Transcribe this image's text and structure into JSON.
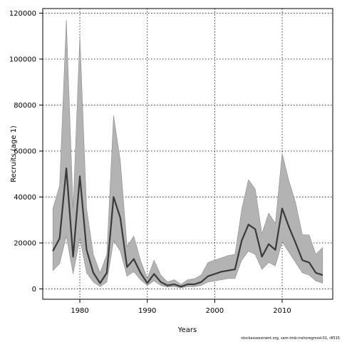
{
  "chart_data": {
    "type": "area",
    "xlabel": "Years",
    "ylabel": "Recruits (age 1)",
    "xlim": [
      1974.5,
      2017.5
    ],
    "ylim": [
      -4500,
      122000
    ],
    "xticks": [
      1980,
      1990,
      2000,
      2010
    ],
    "yticks": [
      0,
      20000,
      40000,
      60000,
      80000,
      100000,
      120000
    ],
    "grid": true,
    "x": [
      1976,
      1977,
      1978,
      1979,
      1980,
      1981,
      1982,
      1983,
      1984,
      1985,
      1986,
      1987,
      1988,
      1989,
      1990,
      1991,
      1992,
      1993,
      1994,
      1995,
      1996,
      1997,
      1998,
      1999,
      2000,
      2001,
      2002,
      2003,
      2004,
      2005,
      2006,
      2007,
      2008,
      2009,
      2010,
      2011,
      2012,
      2013,
      2014,
      2015,
      2016
    ],
    "series": [
      {
        "values": [
          16500,
          22000,
          52500,
          14000,
          49000,
          17000,
          7000,
          2500,
          7000,
          40000,
          31000,
          9500,
          13000,
          7000,
          2500,
          6500,
          3000,
          1500,
          2000,
          1000,
          2000,
          2000,
          3000,
          5500,
          6500,
          7500,
          8000,
          8500,
          21000,
          28000,
          26000,
          14000,
          19500,
          17000,
          35000,
          27000,
          20000,
          12500,
          11500,
          7000,
          6000
        ]
      }
    ],
    "band": {
      "lower": [
        8000,
        11000,
        23000,
        6500,
        22000,
        7000,
        3000,
        1000,
        3000,
        21000,
        16500,
        5500,
        7500,
        4000,
        1500,
        3500,
        1500,
        800,
        1000,
        500,
        1000,
        1000,
        1500,
        3000,
        3500,
        4000,
        4500,
        4500,
        12500,
        16500,
        15000,
        8500,
        11500,
        10000,
        20500,
        16000,
        11500,
        7000,
        6000,
        3500,
        2500
      ],
      "upper": [
        35000,
        45000,
        117000,
        35000,
        110000,
        35000,
        15000,
        7000,
        15000,
        75500,
        56000,
        18500,
        23000,
        12500,
        4500,
        12500,
        6000,
        3000,
        4000,
        2000,
        4000,
        4500,
        6000,
        11500,
        12500,
        13500,
        14500,
        15000,
        34500,
        47500,
        43500,
        24000,
        33000,
        28500,
        59000,
        47000,
        37500,
        23500,
        23500,
        15000,
        18000
      ]
    },
    "colors": {
      "line": "#3a3a3a",
      "band": "#b3b3b3",
      "band_edge": "#8c8c8c",
      "grid": "#222222"
    }
  },
  "footer": "stockassessment.org, sam-tmb-inshoregmod-01, r8515"
}
